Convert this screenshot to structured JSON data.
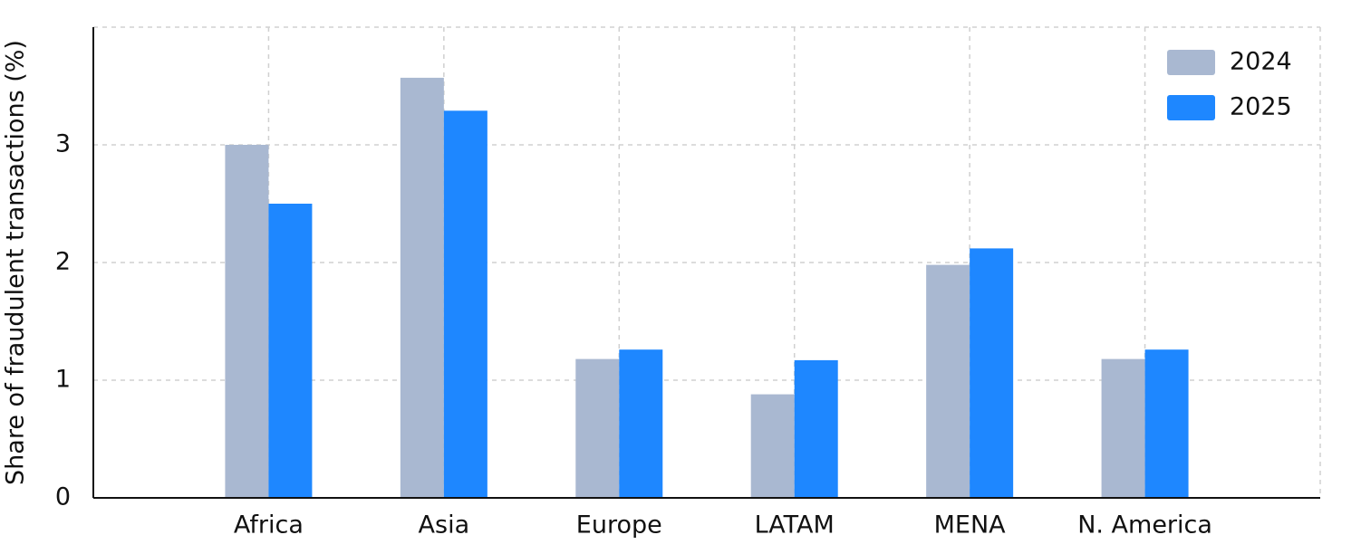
{
  "chart_data": {
    "type": "bar",
    "y_label": "Share of fraudulent transactions (%)",
    "categories": [
      "Africa",
      "Asia",
      "Europe",
      "LATAM",
      "MENA",
      "N. America"
    ],
    "series": [
      {
        "name": "2024",
        "color": "#a9b8d1",
        "values": [
          3.0,
          3.57,
          1.18,
          0.88,
          1.98,
          1.18
        ]
      },
      {
        "name": "2025",
        "color": "#1e87ff",
        "values": [
          2.5,
          3.29,
          1.26,
          1.17,
          2.12,
          1.26
        ]
      }
    ],
    "ylim": [
      0,
      4
    ],
    "yticks": [
      0,
      1,
      2,
      3
    ],
    "grid": true,
    "legend": "upper right"
  }
}
